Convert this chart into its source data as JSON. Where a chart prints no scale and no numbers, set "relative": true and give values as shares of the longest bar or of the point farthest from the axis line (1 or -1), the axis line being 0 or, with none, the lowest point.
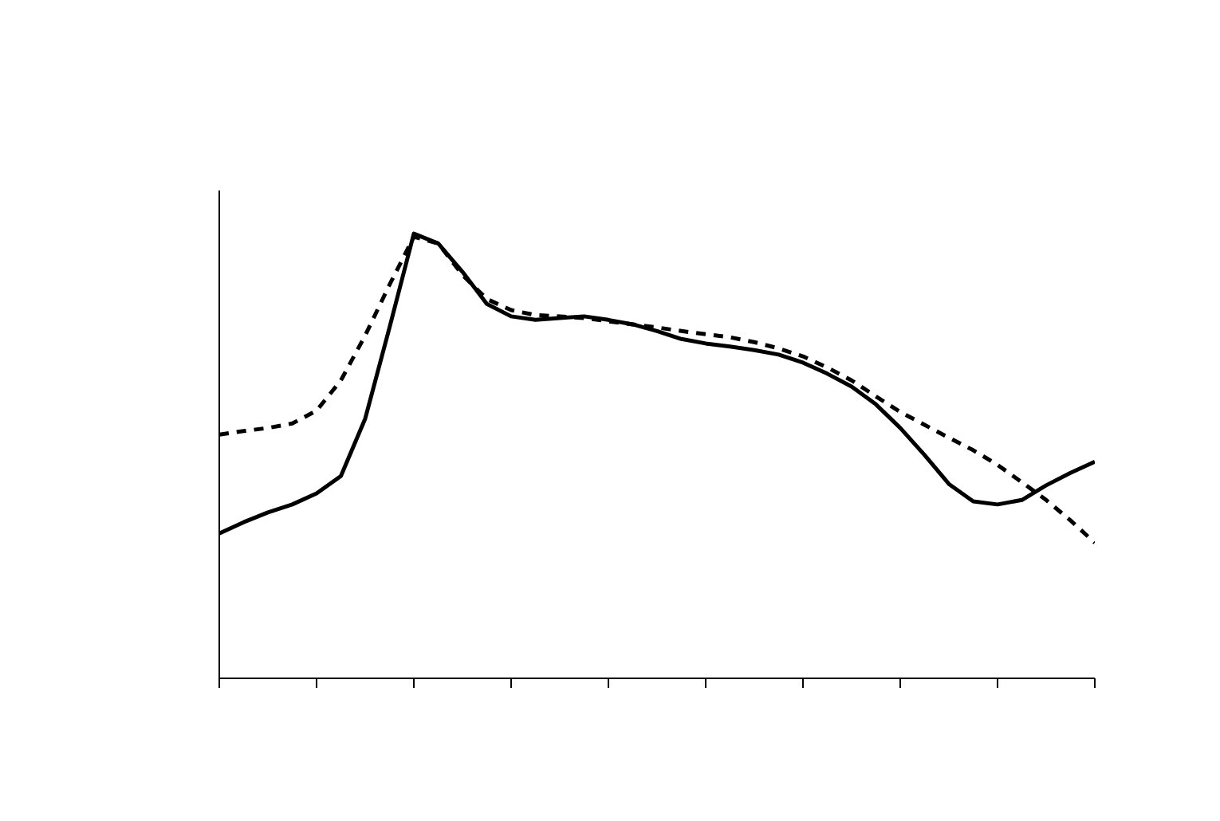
{
  "chart_data": {
    "type": "line",
    "relative": true,
    "grid": false,
    "categories": [
      null,
      null,
      null,
      null,
      null,
      null,
      null,
      null,
      null,
      null,
      null,
      null,
      null,
      null,
      null,
      null,
      null,
      null,
      null,
      null,
      null,
      null,
      null,
      null,
      null,
      null,
      null,
      null,
      null,
      null,
      null,
      null,
      null,
      null,
      null,
      null,
      null
    ],
    "series": [
      {
        "color": "#000000",
        "line_style": "solid",
        "values": [
          0.326,
          0.351,
          0.373,
          0.391,
          0.416,
          0.455,
          0.584,
          0.789,
          1.0,
          0.978,
          0.914,
          0.842,
          0.814,
          0.806,
          0.81,
          0.814,
          0.806,
          0.796,
          0.781,
          0.763,
          0.753,
          0.746,
          0.738,
          0.728,
          0.71,
          0.685,
          0.656,
          0.616,
          0.563,
          0.502,
          0.437,
          0.398,
          0.391,
          0.401,
          0.434,
          0.462,
          0.487
        ]
      },
      {
        "color": "#000000",
        "line_style": "dashed",
        "values": [
          0.548,
          0.556,
          0.563,
          0.573,
          0.602,
          0.67,
          0.771,
          0.885,
          0.993,
          0.978,
          0.907,
          0.853,
          0.828,
          0.817,
          0.814,
          0.81,
          0.803,
          0.796,
          0.789,
          0.781,
          0.774,
          0.767,
          0.756,
          0.742,
          0.724,
          0.699,
          0.67,
          0.634,
          0.599,
          0.57,
          0.541,
          0.513,
          0.48,
          0.441,
          0.401,
          0.355,
          0.305
        ]
      }
    ]
  }
}
